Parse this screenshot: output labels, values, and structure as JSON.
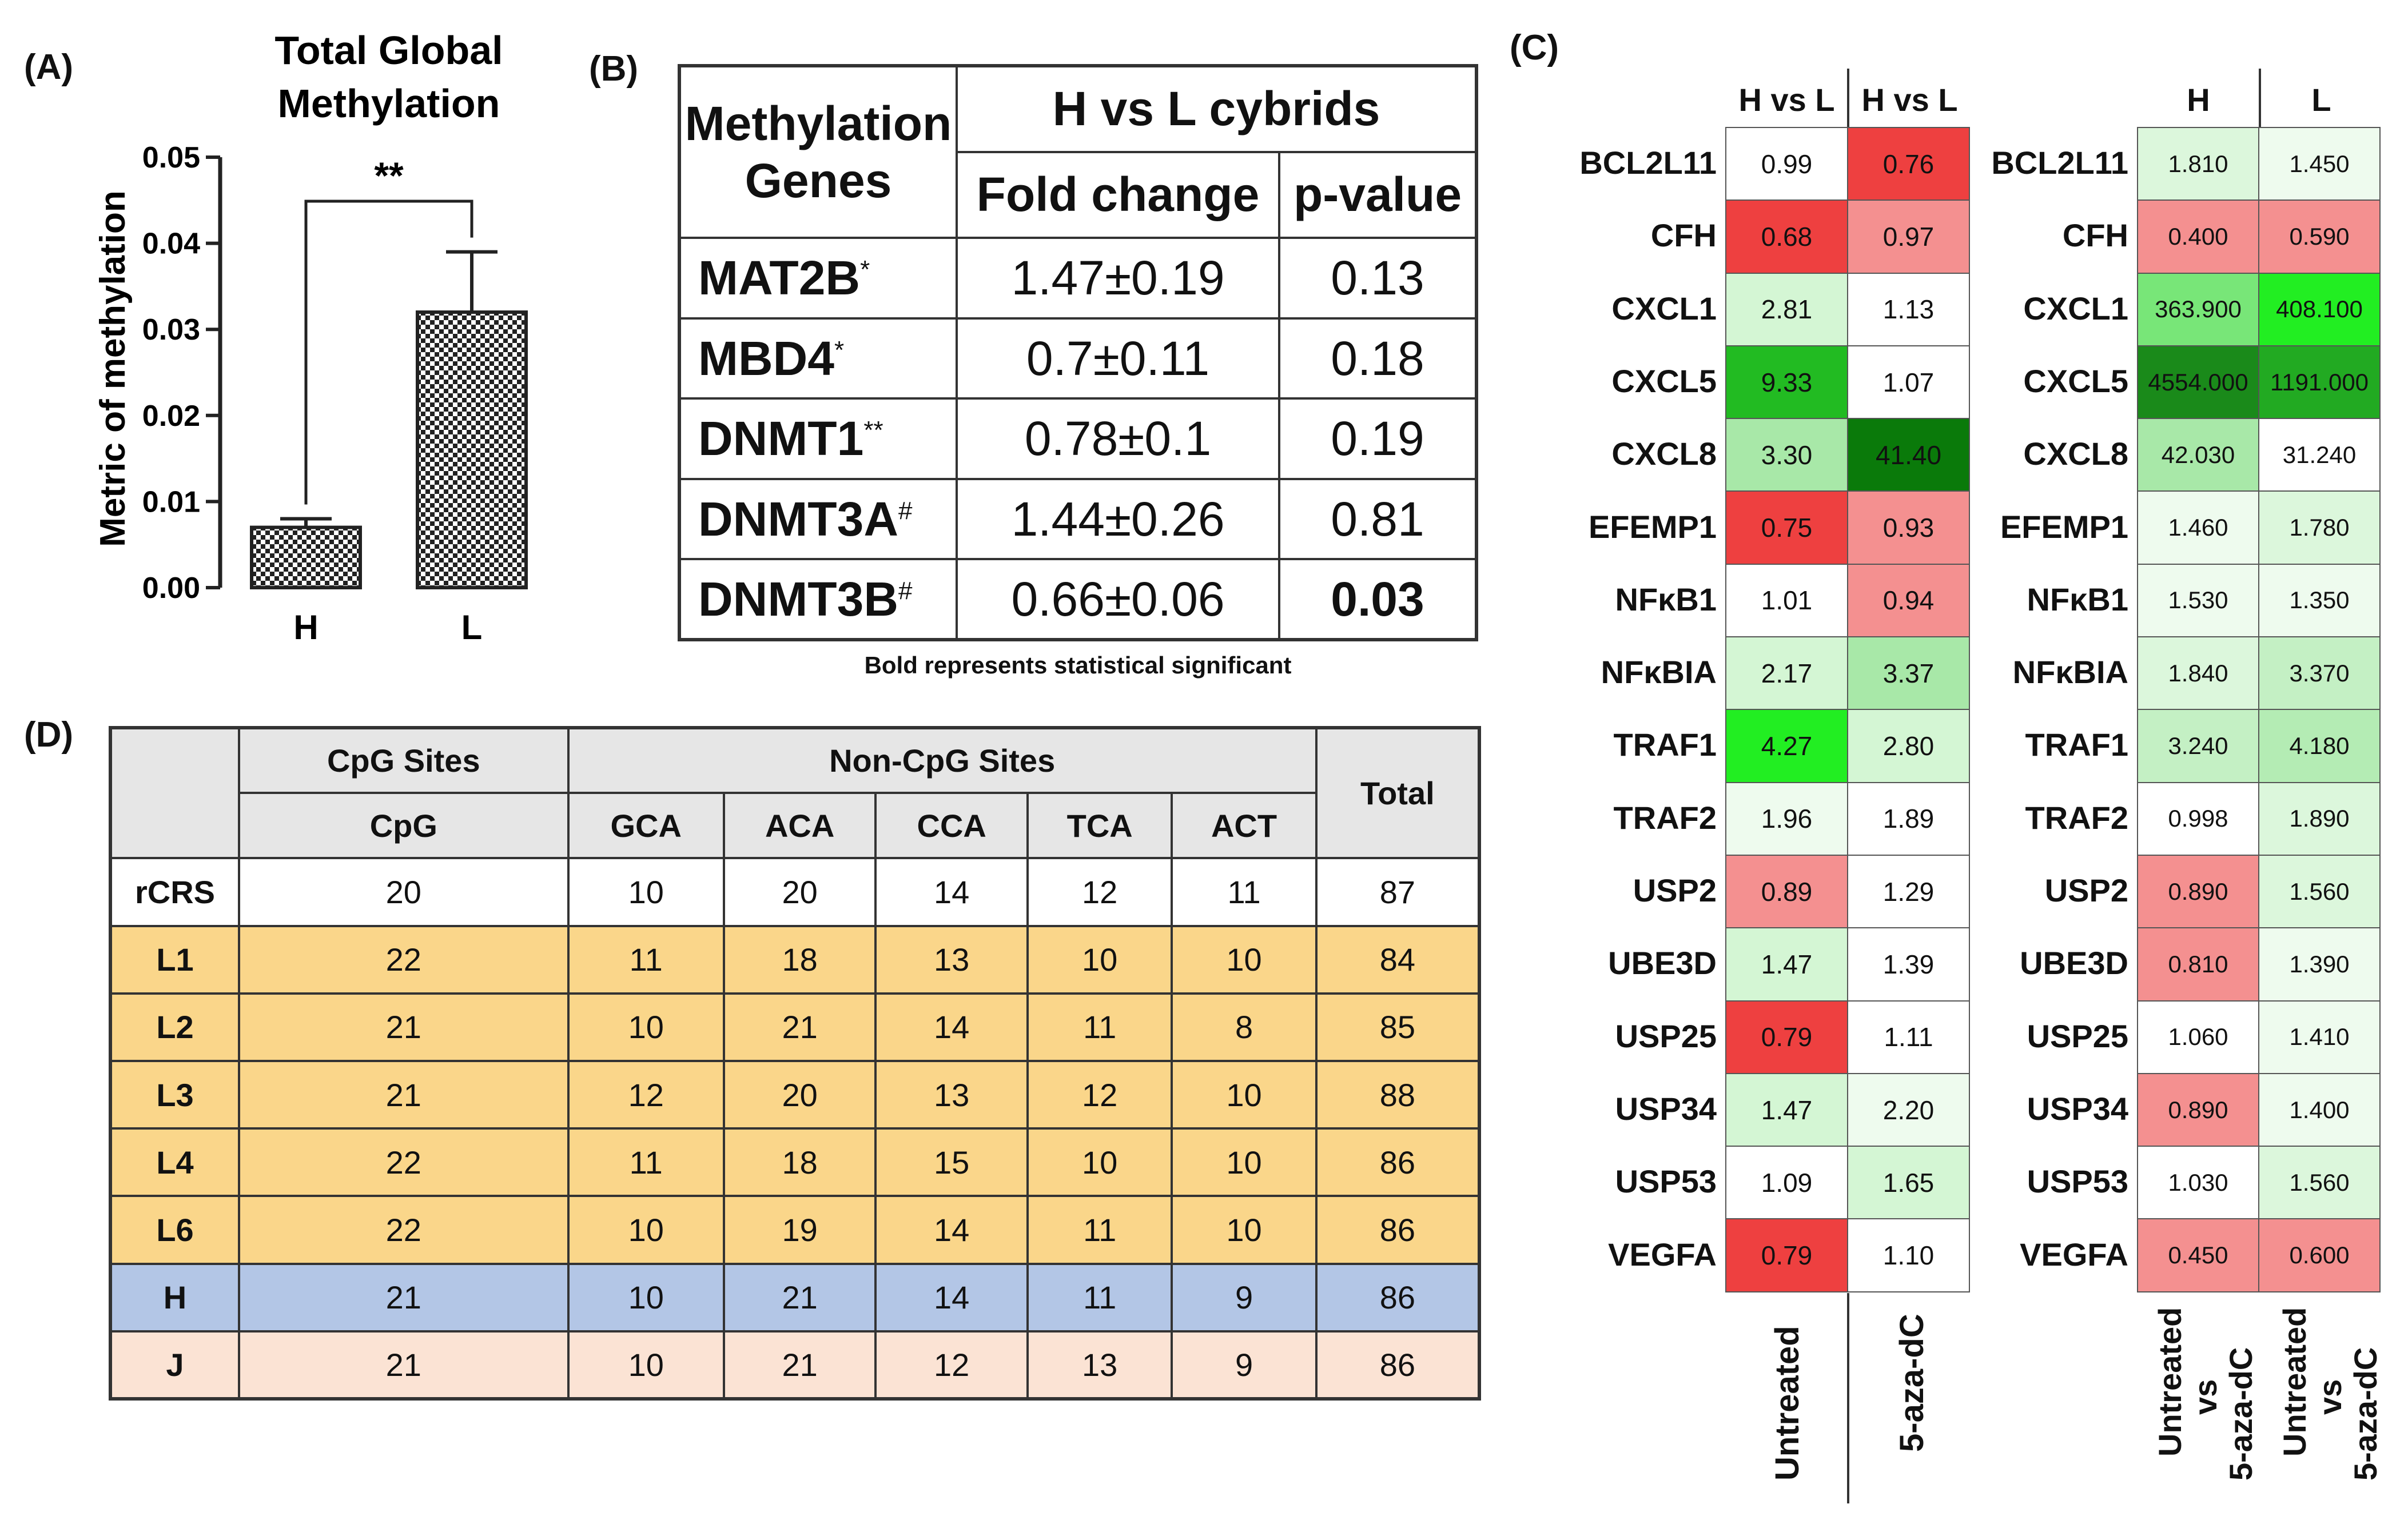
{
  "panels": {
    "a": "(A)",
    "b": "(B)",
    "c": "(C)",
    "d": "(D)"
  },
  "chart_data": {
    "type": "bar",
    "title": "Total Global Methylation",
    "title_line1": "Total Global",
    "title_line2": "Methylation",
    "categories": [
      "H",
      "L"
    ],
    "values": [
      0.007,
      0.032
    ],
    "errors": [
      0.001,
      0.007
    ],
    "ylabel": "Metric of methylation",
    "ylim": [
      0,
      0.05
    ],
    "yticks": [
      "0.00",
      "0.01",
      "0.02",
      "0.03",
      "0.04",
      "0.05"
    ],
    "significance": "**"
  },
  "tableB": {
    "col_gene": "Methylation Genes",
    "col_group": "H vs L cybrids",
    "col_fold": "Fold change",
    "col_p": "p-value",
    "rows": [
      {
        "gene": "MAT2B",
        "mark": "*",
        "fold": "1.47±0.19",
        "p": "0.13"
      },
      {
        "gene": "MBD4",
        "mark": "*",
        "fold": "0.7±0.11",
        "p": "0.18"
      },
      {
        "gene": "DNMT1",
        "mark": "**",
        "fold": "0.78±0.1",
        "p": "0.19"
      },
      {
        "gene": "DNMT3A",
        "mark": "#",
        "fold": "1.44±0.26",
        "p": "0.81"
      },
      {
        "gene": "DNMT3B",
        "mark": "#",
        "fold": "0.66±0.06",
        "p": "0.03"
      }
    ],
    "note": "Bold represents statistical significant"
  },
  "heatmap": {
    "genes": [
      "BCL2L11",
      "CFH",
      "CXCL1",
      "CXCL5",
      "CXCL8",
      "EFEMP1",
      "NFκB1",
      "NFκBIA",
      "TRAF1",
      "TRAF2",
      "USP2",
      "UBE3D",
      "USP25",
      "USP34",
      "USP53",
      "VEGFA"
    ],
    "left_headers": [
      "H vs L",
      "H vs L"
    ],
    "left_conditions": [
      "Untreated",
      "5-aza-dC"
    ],
    "left_values": [
      [
        "0.99",
        "0.76"
      ],
      [
        "0.68",
        "0.97"
      ],
      [
        "2.81",
        "1.13"
      ],
      [
        "9.33",
        "1.07"
      ],
      [
        "3.30",
        "41.40"
      ],
      [
        "0.75",
        "0.93"
      ],
      [
        "1.01",
        "0.94"
      ],
      [
        "2.17",
        "3.37"
      ],
      [
        "4.27",
        "2.80"
      ],
      [
        "1.96",
        "1.89"
      ],
      [
        "0.89",
        "1.29"
      ],
      [
        "1.47",
        "1.39"
      ],
      [
        "0.79",
        "1.11"
      ],
      [
        "1.47",
        "2.20"
      ],
      [
        "1.09",
        "1.65"
      ],
      [
        "0.79",
        "1.10"
      ]
    ],
    "left_colors": [
      [
        "#ffffff",
        "#ee4040"
      ],
      [
        "#ee4040",
        "#f49090"
      ],
      [
        "#d4f6d4",
        "#ffffff"
      ],
      [
        "#22bb22",
        "#ffffff"
      ],
      [
        "#a8e8a8",
        "#0a7a0a"
      ],
      [
        "#ee4040",
        "#f49090"
      ],
      [
        "#ffffff",
        "#f49090"
      ],
      [
        "#d4f6d4",
        "#a8e8a8"
      ],
      [
        "#22ee22",
        "#d4f6d4"
      ],
      [
        "#eefbee",
        "#ffffff"
      ],
      [
        "#f49090",
        "#ffffff"
      ],
      [
        "#d4f6d4",
        "#ffffff"
      ],
      [
        "#ee4040",
        "#ffffff"
      ],
      [
        "#d4f6d4",
        "#eefbee"
      ],
      [
        "#ffffff",
        "#d4f6d4"
      ],
      [
        "#ee4040",
        "#ffffff"
      ]
    ],
    "right_headers": [
      "H",
      "L"
    ],
    "right_conditions": [
      "Untreated vs 5-aza-dC",
      "Untreated vs 5-aza-dC"
    ],
    "right_cond_l1": "Untreated",
    "right_cond_l2": "vs",
    "right_cond_l3": "5-aza-dC",
    "right_values": [
      [
        "1.810",
        "1.450"
      ],
      [
        "0.400",
        "0.590"
      ],
      [
        "363.900",
        "408.100"
      ],
      [
        "4554.000",
        "1191.000"
      ],
      [
        "42.030",
        "31.240"
      ],
      [
        "1.460",
        "1.780"
      ],
      [
        "1.530",
        "1.350"
      ],
      [
        "1.840",
        "3.370"
      ],
      [
        "3.240",
        "4.180"
      ],
      [
        "0.998",
        "1.890"
      ],
      [
        "0.890",
        "1.560"
      ],
      [
        "0.810",
        "1.390"
      ],
      [
        "1.060",
        "1.410"
      ],
      [
        "0.890",
        "1.400"
      ],
      [
        "1.030",
        "1.560"
      ],
      [
        "0.450",
        "0.600"
      ]
    ],
    "right_colors": [
      [
        "#dcf7dc",
        "#eefbee"
      ],
      [
        "#f49090",
        "#f49090"
      ],
      [
        "#78e678",
        "#22ee22"
      ],
      [
        "#1a8a1a",
        "#22aa22"
      ],
      [
        "#a8e8a8",
        "#ffffff"
      ],
      [
        "#eefbee",
        "#dcf7dc"
      ],
      [
        "#eefbee",
        "#eefbee"
      ],
      [
        "#dcf7dc",
        "#c4f0c4"
      ],
      [
        "#c4f0c4",
        "#b4ecb4"
      ],
      [
        "#ffffff",
        "#dcf7dc"
      ],
      [
        "#f49090",
        "#dcf7dc"
      ],
      [
        "#f49090",
        "#eefbee"
      ],
      [
        "#ffffff",
        "#eefbee"
      ],
      [
        "#f49090",
        "#eefbee"
      ],
      [
        "#ffffff",
        "#dcf7dc"
      ],
      [
        "#f49090",
        "#f49090"
      ]
    ]
  },
  "tableD": {
    "group_cpg": "CpG Sites",
    "group_noncpg": "Non-CpG Sites",
    "total": "Total",
    "columns": [
      "CpG",
      "GCA",
      "ACA",
      "CCA",
      "TCA",
      "ACT"
    ],
    "rows": [
      {
        "label": "rCRS",
        "values": [
          "20",
          "10",
          "20",
          "14",
          "12",
          "11",
          "87"
        ],
        "color": "#ffffff"
      },
      {
        "label": "L1",
        "values": [
          "22",
          "11",
          "18",
          "13",
          "10",
          "10",
          "84"
        ],
        "color": "#fad68a"
      },
      {
        "label": "L2",
        "values": [
          "21",
          "10",
          "21",
          "14",
          "11",
          "8",
          "85"
        ],
        "color": "#fad68a"
      },
      {
        "label": "L3",
        "values": [
          "21",
          "12",
          "20",
          "13",
          "12",
          "10",
          "88"
        ],
        "color": "#fad68a"
      },
      {
        "label": "L4",
        "values": [
          "22",
          "11",
          "18",
          "15",
          "10",
          "10",
          "86"
        ],
        "color": "#fad68a"
      },
      {
        "label": "L6",
        "values": [
          "22",
          "10",
          "19",
          "14",
          "11",
          "10",
          "86"
        ],
        "color": "#fad68a"
      },
      {
        "label": "H",
        "values": [
          "21",
          "10",
          "21",
          "14",
          "11",
          "9",
          "86"
        ],
        "color": "#b3c6e6"
      },
      {
        "label": "J",
        "values": [
          "21",
          "10",
          "21",
          "12",
          "13",
          "9",
          "86"
        ],
        "color": "#fbe3d4"
      }
    ]
  }
}
